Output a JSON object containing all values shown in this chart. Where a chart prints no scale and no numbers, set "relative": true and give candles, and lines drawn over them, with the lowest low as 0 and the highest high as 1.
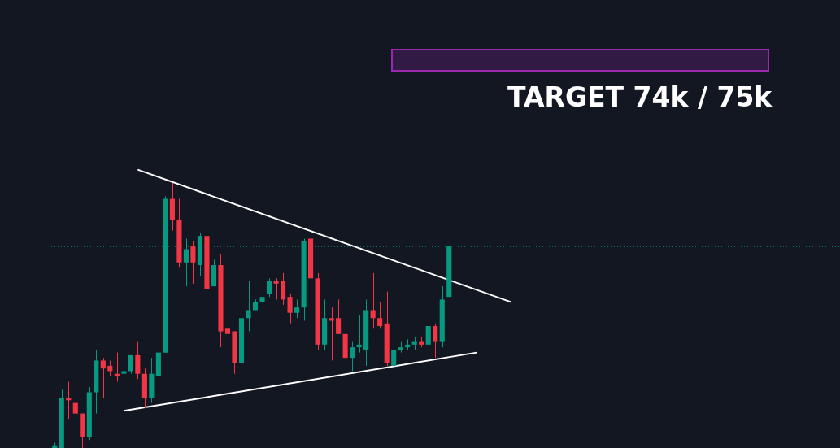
{
  "chart_data": {
    "type": "candlestick",
    "relative": true,
    "legend": false,
    "annotations": [
      "TARGET 74k / 75k"
    ],
    "categories": [
      null,
      null,
      null,
      null,
      null,
      null,
      null,
      null,
      null,
      null,
      null,
      null,
      null,
      null,
      null,
      null,
      null,
      null,
      null,
      null,
      null,
      null,
      null,
      null,
      null,
      null,
      null,
      null,
      null,
      null,
      null,
      null,
      null,
      null,
      null,
      null,
      null,
      null,
      null,
      null,
      null,
      null,
      null,
      null,
      null,
      null,
      null,
      null,
      null,
      null,
      null,
      null,
      null,
      null,
      null,
      null,
      null,
      null,
      null,
      null,
      null,
      null,
      null,
      null,
      null,
      null,
      null,
      null,
      null,
      null,
      null,
      null,
      null,
      null,
      null,
      null,
      null,
      null,
      null,
      null,
      null,
      null,
      null,
      null,
      null,
      null,
      null,
      null,
      null,
      null,
      null,
      null,
      null,
      null,
      null,
      null,
      null,
      null,
      null,
      null,
      null,
      null,
      null,
      null,
      null,
      null,
      null,
      null,
      null,
      null,
      null,
      null,
      null,
      null
    ],
    "ohlc": [
      [
        0,
        0.02,
        0,
        0.01
      ],
      [
        0,
        0.22,
        0,
        0.19
      ],
      [
        0.19,
        0.25,
        0.11,
        0.18
      ],
      [
        0.17,
        0.26,
        0.07,
        0.13
      ],
      [
        0.13,
        0.13,
        0,
        0.04
      ],
      [
        0.04,
        0.23,
        0.03,
        0.21
      ],
      [
        0.21,
        0.37,
        0.13,
        0.33
      ],
      [
        0.33,
        0.34,
        0.19,
        0.3
      ],
      [
        0.31,
        0.33,
        0.27,
        0.29
      ],
      [
        0.28,
        0.36,
        0.25,
        0.27
      ],
      [
        0.28,
        0.31,
        0.26,
        0.29
      ],
      [
        0.29,
        0.35,
        0.28,
        0.35
      ],
      [
        0.35,
        0.4,
        0.26,
        0.28
      ],
      [
        0.28,
        0.3,
        0.15,
        0.19
      ],
      [
        0.19,
        0.34,
        0.17,
        0.28
      ],
      [
        0.27,
        0.37,
        0.26,
        0.36
      ],
      [
        0.36,
        0.95,
        0.36,
        0.94
      ],
      [
        0.94,
        1,
        0.82,
        0.86
      ],
      [
        0.86,
        0.94,
        0.68,
        0.7
      ],
      [
        0.7,
        0.79,
        0.61,
        0.75
      ],
      [
        0.76,
        0.78,
        0.62,
        0.7
      ],
      [
        0.69,
        0.81,
        0.65,
        0.8
      ],
      [
        0.8,
        0.82,
        0.57,
        0.6
      ],
      [
        0.61,
        0.71,
        0.61,
        0.69
      ],
      [
        0.69,
        0.73,
        0.38,
        0.44
      ],
      [
        0.45,
        0.48,
        0.2,
        0.43
      ],
      [
        0.44,
        0.44,
        0.28,
        0.32
      ],
      [
        0.32,
        0.5,
        0.24,
        0.49
      ],
      [
        0.49,
        0.63,
        0.44,
        0.52
      ],
      [
        0.52,
        0.56,
        0.52,
        0.55
      ],
      [
        0.55,
        0.67,
        0.55,
        0.57
      ],
      [
        0.58,
        0.64,
        0.57,
        0.63
      ],
      [
        0.63,
        0.64,
        0.56,
        0.62
      ],
      [
        0.63,
        0.66,
        0.54,
        0.56
      ],
      [
        0.57,
        0.58,
        0.47,
        0.51
      ],
      [
        0.51,
        0.56,
        0.49,
        0.53
      ],
      [
        0.53,
        0.79,
        0.48,
        0.78
      ],
      [
        0.79,
        0.82,
        0.6,
        0.64
      ],
      [
        0.64,
        0.66,
        0.37,
        0.39
      ],
      [
        0.39,
        0.56,
        0.37,
        0.49
      ],
      [
        0.49,
        0.53,
        0.33,
        0.48
      ],
      [
        0.49,
        0.56,
        0.43,
        0.43
      ],
      [
        0.43,
        0.47,
        0.33,
        0.34
      ],
      [
        0.34,
        0.4,
        0.29,
        0.38
      ],
      [
        0.38,
        0.5,
        0.36,
        0.39
      ],
      [
        0.37,
        0.56,
        0.31,
        0.52
      ],
      [
        0.52,
        0.66,
        0.45,
        0.49
      ],
      [
        0.49,
        0.55,
        0.45,
        0.46
      ],
      [
        0.47,
        0.59,
        0.31,
        0.32
      ],
      [
        0.31,
        0.43,
        0.25,
        0.37
      ],
      [
        0.37,
        0.4,
        0.36,
        0.38
      ],
      [
        0.38,
        0.41,
        0.37,
        0.39
      ],
      [
        0.39,
        0.42,
        0.37,
        0.4
      ],
      [
        0.4,
        0.42,
        0.38,
        0.39
      ],
      [
        0.39,
        0.5,
        0.35,
        0.46
      ],
      [
        0.46,
        0.47,
        0.34,
        0.4
      ],
      [
        0.4,
        0.61,
        0.38,
        0.56
      ],
      [
        0.57,
        0.76,
        0.57,
        0.76
      ],
      null,
      null,
      null,
      null,
      null,
      null,
      null,
      null,
      null,
      null,
      null,
      null,
      null,
      null,
      null,
      null,
      null,
      null,
      null,
      null,
      null,
      null,
      null,
      null,
      null,
      null,
      null,
      null,
      null,
      null,
      null,
      null,
      null,
      null,
      null,
      null,
      null,
      null,
      null,
      null,
      null,
      null,
      null,
      null,
      null,
      null,
      null,
      null,
      null,
      null,
      null,
      null,
      null,
      null,
      null,
      null
    ],
    "colors": [
      "#089981",
      "#089981",
      "#f23645",
      "#f23645",
      "#f23645",
      "#089981",
      "#089981",
      "#f23645",
      "#f23645",
      "#f23645",
      "#089981",
      "#089981",
      "#f23645",
      "#f23645",
      "#089981",
      "#089981",
      "#089981",
      "#f23645",
      "#f23645",
      "#089981",
      "#f23645",
      "#089981",
      "#f23645",
      "#089981",
      "#f23645",
      "#f23645",
      "#f23645",
      "#089981",
      "#089981",
      "#089981",
      "#089981",
      "#089981",
      "#f23645",
      "#f23645",
      "#f23645",
      "#089981",
      "#089981",
      "#f23645",
      "#f23645",
      "#089981",
      "#f23645",
      "#f23645",
      "#f23645",
      "#089981",
      "#089981",
      "#089981",
      "#f23645",
      "#f23645",
      "#f23645",
      "#089981",
      "#089981",
      "#089981",
      "#089981",
      "#f23645",
      "#089981",
      "#f23645",
      "#089981",
      "#089981",
      null,
      null,
      null,
      null,
      null,
      null,
      null,
      null,
      null,
      null,
      null,
      null,
      null,
      null,
      null,
      null,
      null,
      null,
      null,
      null,
      null,
      null,
      null,
      null,
      null,
      null,
      null,
      null,
      null,
      null,
      null,
      null,
      null,
      null,
      null,
      null,
      null,
      null,
      null,
      null,
      null,
      null,
      null,
      null,
      null,
      null,
      null,
      null,
      null,
      null,
      null,
      null,
      null,
      null,
      null,
      null
    ],
    "series": [
      {
        "type": "line",
        "color": "#ffffff",
        "values": [
          null,
          null,
          null,
          null,
          null,
          null,
          null,
          null,
          null,
          null,
          null,
          null,
          1.05,
          null,
          null,
          null,
          null,
          null,
          null,
          null,
          null,
          null,
          null,
          null,
          null,
          null,
          null,
          null,
          null,
          null,
          null,
          null,
          null,
          null,
          null,
          null,
          null,
          null,
          null,
          null,
          null,
          null,
          null,
          null,
          null,
          null,
          null,
          null,
          null,
          null,
          null,
          null,
          null,
          null,
          null,
          null,
          null,
          null,
          null,
          null,
          null,
          null,
          null,
          null,
          null,
          null,
          0.55,
          null,
          null,
          null,
          null,
          null,
          null,
          null,
          null,
          null,
          null,
          null,
          null,
          null,
          null,
          null,
          null,
          null,
          null,
          null,
          null,
          null,
          null,
          null,
          null,
          null,
          null,
          null,
          null,
          null,
          null,
          null,
          null,
          null,
          null,
          null,
          null,
          null,
          null,
          null,
          null,
          null,
          null,
          null,
          null,
          null,
          null,
          null
        ]
      },
      {
        "type": "line",
        "color": "#ffffff",
        "values": [
          null,
          null,
          null,
          null,
          null,
          null,
          null,
          null,
          null,
          null,
          0.14,
          null,
          null,
          null,
          null,
          null,
          null,
          null,
          null,
          null,
          null,
          null,
          null,
          null,
          null,
          null,
          null,
          null,
          null,
          null,
          null,
          null,
          null,
          null,
          null,
          null,
          null,
          null,
          null,
          null,
          null,
          null,
          null,
          null,
          null,
          null,
          null,
          null,
          null,
          null,
          null,
          null,
          null,
          null,
          null,
          null,
          null,
          null,
          null,
          null,
          null,
          0.36,
          null,
          null,
          null,
          null,
          null,
          null,
          null,
          null,
          null,
          null,
          null,
          null,
          null,
          null,
          null,
          null,
          null,
          null,
          null,
          null,
          null,
          null,
          null,
          null,
          null,
          null,
          null,
          null,
          null,
          null,
          null,
          null,
          null,
          null,
          null,
          null,
          null,
          null,
          null,
          null,
          null,
          null,
          null,
          null,
          null,
          null,
          null,
          null,
          null,
          null,
          null,
          null
        ]
      }
    ],
    "ref_lines": [
      {
        "axis": "y",
        "value": 0.76,
        "color": "#089981",
        "line_style": "dotted"
      }
    ]
  }
}
